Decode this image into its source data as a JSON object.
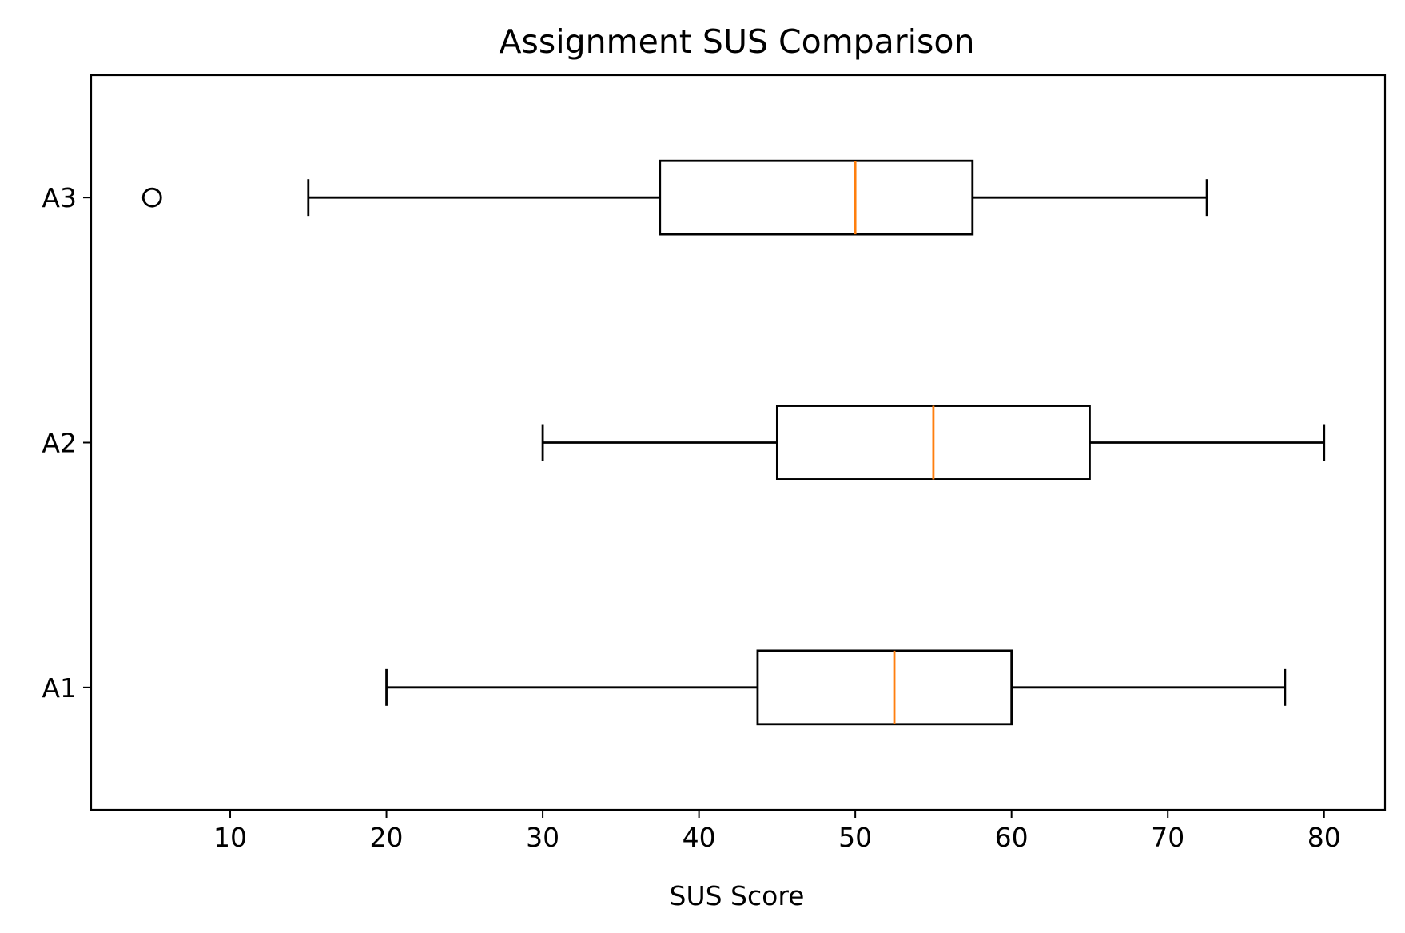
{
  "chart_data": {
    "type": "boxplot",
    "orientation": "horizontal",
    "title": "Assignment SUS Comparison",
    "xlabel": "SUS Score",
    "ylabel": "",
    "xlim": [
      1.1,
      83.9
    ],
    "xticks": [
      10,
      20,
      30,
      40,
      50,
      60,
      70,
      80
    ],
    "xtick_labels": [
      "10",
      "20",
      "30",
      "40",
      "50",
      "60",
      "70",
      "80"
    ],
    "grid": false,
    "box_color": "#000000",
    "median_color": "#ff7f0e",
    "groups": [
      {
        "label": "A1",
        "whisker_low": 20,
        "q1": 43.75,
        "median": 52.5,
        "q3": 60,
        "whisker_high": 77.5,
        "outliers": []
      },
      {
        "label": "A2",
        "whisker_low": 30,
        "q1": 45,
        "median": 55,
        "q3": 65,
        "whisker_high": 80,
        "outliers": []
      },
      {
        "label": "A3",
        "whisker_low": 15,
        "q1": 37.5,
        "median": 50,
        "q3": 57.5,
        "whisker_high": 72.5,
        "outliers": [
          5
        ]
      }
    ]
  }
}
